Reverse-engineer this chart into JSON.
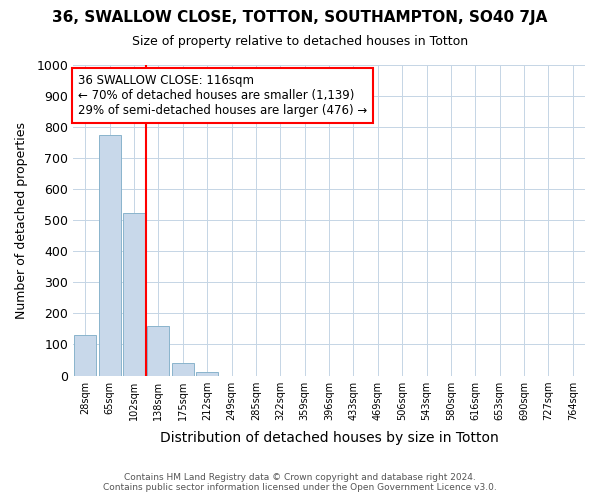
{
  "title": "36, SWALLOW CLOSE, TOTTON, SOUTHAMPTON, SO40 7JA",
  "subtitle": "Size of property relative to detached houses in Totton",
  "xlabel": "Distribution of detached houses by size in Totton",
  "ylabel": "Number of detached properties",
  "footnote1": "Contains HM Land Registry data © Crown copyright and database right 2024.",
  "footnote2": "Contains public sector information licensed under the Open Government Licence v3.0.",
  "bar_labels": [
    "28sqm",
    "65sqm",
    "102sqm",
    "138sqm",
    "175sqm",
    "212sqm",
    "249sqm",
    "285sqm",
    "322sqm",
    "359sqm",
    "396sqm",
    "433sqm",
    "469sqm",
    "506sqm",
    "543sqm",
    "580sqm",
    "616sqm",
    "653sqm",
    "690sqm",
    "727sqm",
    "764sqm"
  ],
  "bar_values": [
    130,
    775,
    525,
    160,
    40,
    10,
    0,
    0,
    0,
    0,
    0,
    0,
    0,
    0,
    0,
    0,
    0,
    0,
    0,
    0,
    0
  ],
  "bar_color": "#c8d8ea",
  "bar_edgecolor": "#8ab4cc",
  "vline_x": 2.5,
  "vline_color": "red",
  "ylim": [
    0,
    1000
  ],
  "yticks": [
    0,
    100,
    200,
    300,
    400,
    500,
    600,
    700,
    800,
    900,
    1000
  ],
  "annotation_line1": "36 SWALLOW CLOSE: 116sqm",
  "annotation_line2": "← 70% of detached houses are smaller (1,139)",
  "annotation_line3": "29% of semi-detached houses are larger (476) →",
  "annotation_box_color": "white",
  "annotation_box_edgecolor": "red",
  "grid_color": "#c5d5e5",
  "bg_color": "#ffffff"
}
